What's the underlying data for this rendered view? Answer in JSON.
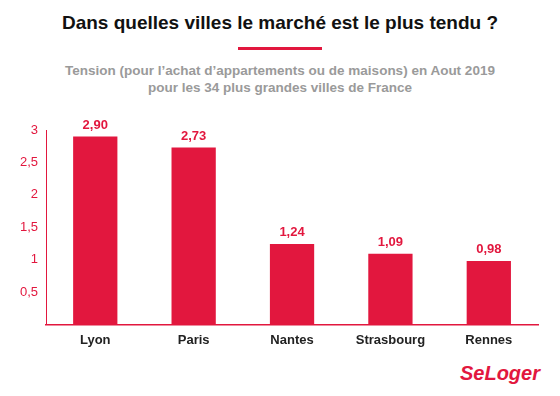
{
  "chart_data": {
    "type": "bar",
    "title": "Dans quelles villes le marché est le plus tendu ?",
    "subtitle": [
      "Tension (pour l’achat d’appartements ou de maisons) en Aout 2019",
      "pour les 34 plus grandes villes de France"
    ],
    "annotations": [
      "SeLoger"
    ],
    "categories": [
      "Lyon",
      "Paris",
      "Nantes",
      "Strasbourg",
      "Rennes"
    ],
    "values": [
      2.9,
      2.73,
      1.24,
      1.09,
      0.98
    ],
    "value_labels": [
      "2,90",
      "2,73",
      "1,24",
      "1,09",
      "0,98"
    ],
    "color": "#e2173e",
    "ylim": [
      0,
      3
    ],
    "yticks": [
      {
        "value": 0.5,
        "label": "0,5"
      },
      1,
      {
        "value": 1.5,
        "label": "1,5"
      },
      2,
      {
        "value": 2.5,
        "label": "2,5"
      },
      3
    ],
    "grid": false,
    "data_labels": true
  }
}
